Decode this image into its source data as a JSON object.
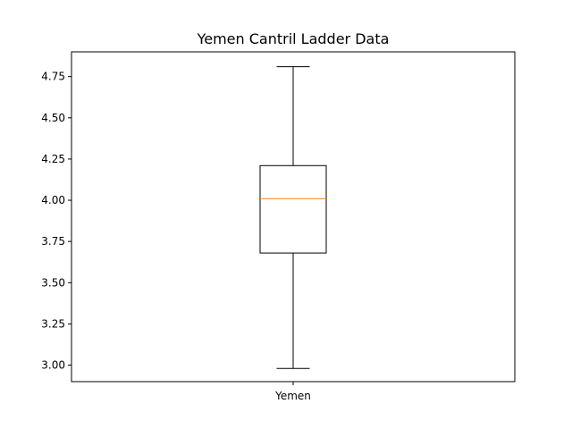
{
  "chart_data": {
    "type": "box",
    "title": "Yemen Cantril Ladder Data",
    "xlabel": "",
    "ylabel": "",
    "categories": [
      "Yemen"
    ],
    "boxes": [
      {
        "name": "Yemen",
        "whisker_low": 2.98,
        "q1": 3.68,
        "median": 4.01,
        "q3": 4.21,
        "whisker_high": 4.81
      }
    ],
    "ylim": [
      2.9,
      4.9
    ],
    "yticks": [
      3.0,
      3.25,
      3.5,
      3.75,
      4.0,
      4.25,
      4.5,
      4.75
    ],
    "ytick_labels": [
      "3.00",
      "3.25",
      "3.50",
      "3.75",
      "4.00",
      "4.25",
      "4.50",
      "4.75"
    ],
    "grid": false,
    "colors": {
      "box": "#000000",
      "median": "#ff7f0e",
      "whisker": "#000000"
    }
  }
}
